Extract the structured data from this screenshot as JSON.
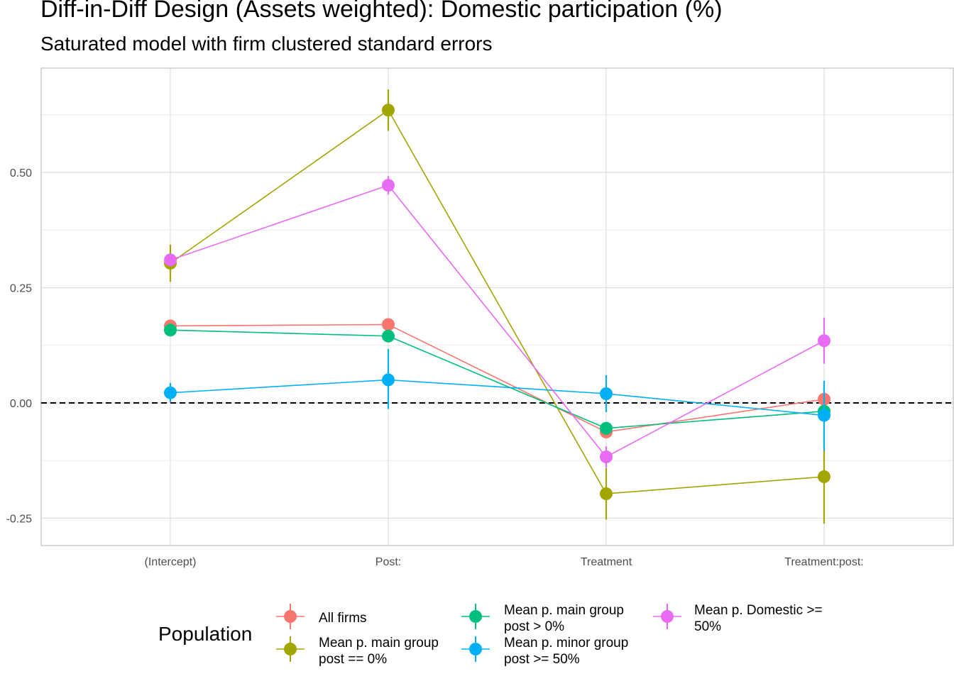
{
  "chart_data": {
    "type": "line",
    "title": "Diff-in-Diff Design (Assets weighted): Domestic participation (%)",
    "subtitle": "Saturated model with firm clustered standard errors",
    "xlabel": "",
    "ylabel": "",
    "categories": [
      "(Intercept)",
      "Post:",
      "Treatment",
      "Treatment:post:"
    ],
    "y_ticks": [
      -0.25,
      0.0,
      0.25,
      0.5
    ],
    "y_tick_labels": [
      "-0.25",
      "0.00",
      "0.25",
      "0.50"
    ],
    "ylim": [
      -0.31,
      0.72
    ],
    "reference_line": 0,
    "grid": true,
    "legend": {
      "title": "Population",
      "position": "bottom",
      "labels": [
        [
          "All firms"
        ],
        [
          "Mean p. main group",
          "post == 0%"
        ],
        [
          "Mean p. main group",
          "post > 0%"
        ],
        [
          "Mean p. minor group",
          "post >= 50%"
        ],
        [
          "Mean p. Domestic >=",
          "50%"
        ]
      ]
    },
    "series": [
      {
        "name": "All firms",
        "color": "#F8766D",
        "values": [
          0.167,
          0.17,
          -0.063,
          0.008
        ],
        "lower": [
          0.167,
          0.17,
          -0.063,
          0.008
        ],
        "upper": [
          0.167,
          0.17,
          -0.063,
          0.008
        ]
      },
      {
        "name": "Mean p. main group post == 0%",
        "color": "#A3A500",
        "values": [
          0.303,
          0.635,
          -0.197,
          -0.16
        ],
        "lower": [
          0.263,
          0.59,
          -0.253,
          -0.262
        ],
        "upper": [
          0.343,
          0.68,
          -0.141,
          -0.1
        ]
      },
      {
        "name": "Mean p. main group post > 0%",
        "color": "#00BF7D",
        "values": [
          0.158,
          0.145,
          -0.055,
          -0.018
        ],
        "lower": [
          0.158,
          0.145,
          -0.055,
          -0.018
        ],
        "upper": [
          0.158,
          0.145,
          -0.055,
          -0.018
        ]
      },
      {
        "name": "Mean p. minor group post >= 50%",
        "color": "#00B0F6",
        "values": [
          0.022,
          0.05,
          0.02,
          -0.027
        ],
        "lower": [
          0.001,
          -0.013,
          -0.02,
          -0.103
        ],
        "upper": [
          0.043,
          0.117,
          0.06,
          0.048
        ]
      },
      {
        "name": "Mean p. Domestic >= 50%",
        "color": "#E76BF3",
        "values": [
          0.31,
          0.472,
          -0.117,
          0.135
        ],
        "lower": [
          0.31,
          0.452,
          -0.14,
          0.085
        ],
        "upper": [
          0.31,
          0.492,
          -0.094,
          0.185
        ]
      }
    ]
  }
}
